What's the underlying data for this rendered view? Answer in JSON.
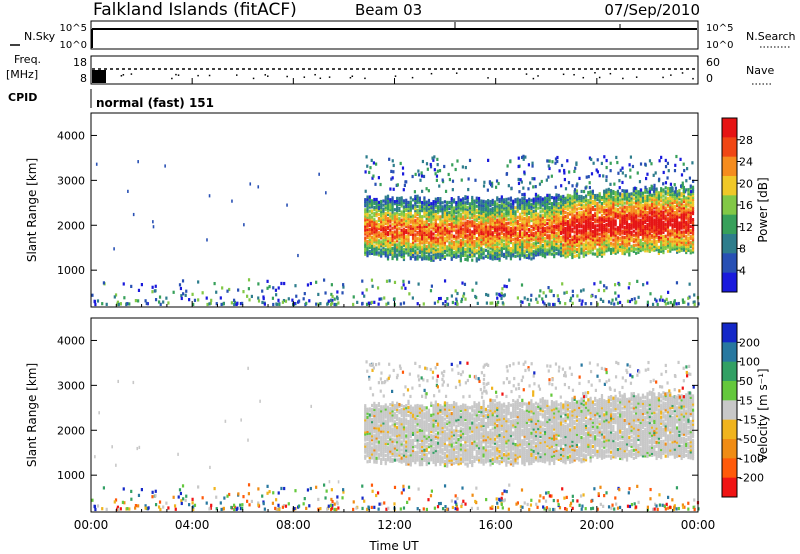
{
  "header": {
    "station": "Falkland Islands (fitACF)",
    "beam": "Beam 03",
    "date": "07/Sep/2010"
  },
  "noise_panel": {
    "left_label": "N.Sky",
    "left_ticks": [
      "10^5",
      "10^0"
    ],
    "right_label": "N.Search",
    "right_ticks": [
      "10^5",
      "10^0"
    ]
  },
  "freq_panel": {
    "left_label_top": "Freq.",
    "left_label_bottom": "[MHz]",
    "left_ticks": [
      "18",
      "8"
    ],
    "right_label": "Nave",
    "right_ticks": [
      "60",
      "0"
    ]
  },
  "cpid": {
    "label": "CPID",
    "mode": "normal (fast) 151"
  },
  "xaxis": {
    "label": "Time UT",
    "ticks": [
      "00:00",
      "04:00",
      "08:00",
      "12:00",
      "16:00",
      "20:00",
      "00:00"
    ]
  },
  "colors": {
    "power": [
      "#1a1adc",
      "#2850b4",
      "#2e7d8c",
      "#37a05a",
      "#82c846",
      "#f0c828",
      "#f58c1e",
      "#f04614",
      "#e61414"
    ],
    "velocity": [
      "#1428c8",
      "#2878a0",
      "#32a064",
      "#64c83c",
      "#c8c8c8",
      "#f0b41e",
      "#f08c14",
      "#ff5a0a",
      "#f01414"
    ]
  },
  "chart_data": [
    {
      "type": "heatmap",
      "name": "power",
      "ylabel": "Slant Range [km]",
      "yticks": [
        "1000",
        "2000",
        "3000",
        "4000"
      ],
      "ylim": [
        180,
        4500
      ],
      "xlim": [
        0,
        24
      ],
      "colorbar_label": "Power [dB]",
      "colorbar_ticks": [
        "4",
        "8",
        "12",
        "16",
        "20",
        "24",
        "28"
      ],
      "colorbar_range": [
        0,
        32
      ],
      "main_echo_band": {
        "start_hour": 10.8,
        "end_hour": 23.8,
        "range_km": [
          1300,
          2700
        ]
      }
    },
    {
      "type": "heatmap",
      "name": "velocity",
      "ylabel": "Slant Range [km]",
      "yticks": [
        "1000",
        "2000",
        "3000",
        "4000"
      ],
      "ylim": [
        180,
        4500
      ],
      "xlim": [
        0,
        24
      ],
      "colorbar_label": "Velocity [m s⁻¹]",
      "colorbar_ticks": [
        "200",
        "100",
        "50",
        "15",
        "-15",
        "-50",
        "-100",
        "-200"
      ],
      "main_echo_band": {
        "start_hour": 10.8,
        "end_hour": 23.8,
        "range_km": [
          1300,
          2700
        ]
      }
    }
  ]
}
